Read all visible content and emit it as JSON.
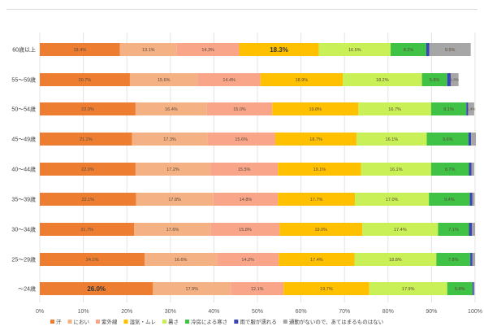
{
  "chart_data": {
    "type": "bar",
    "orientation": "horizontal",
    "stacked": true,
    "percent_axis": true,
    "categories": [
      "60歳以上",
      "55～59歳",
      "50～54歳",
      "45～49歳",
      "40～44歳",
      "35～39歳",
      "30～34歳",
      "25～29歳",
      "～24歳"
    ],
    "series": [
      {
        "name": "汗",
        "color": "#ed7d31",
        "values": [
          18.4,
          20.7,
          22.0,
          21.2,
          22.0,
          22.1,
          21.7,
          24.1,
          26.0
        ],
        "labels": [
          "18.4%",
          "20.7%",
          "22.0%",
          "21.2%",
          "22.0%",
          "22.1%",
          "21.7%",
          "24.1%",
          "26.0%"
        ]
      },
      {
        "name": "におい",
        "color": "#f4b183",
        "values": [
          13.1,
          15.6,
          16.4,
          17.3,
          17.2,
          17.8,
          17.6,
          16.6,
          17.9
        ],
        "labels": [
          "13.1%",
          "15.6%",
          "16.4%",
          "17.3%",
          "17.2%",
          "17.8%",
          "17.6%",
          "16.6%",
          "17.9%"
        ]
      },
      {
        "name": "紫外線",
        "color": "#f8a58a",
        "values": [
          14.3,
          14.4,
          15.0,
          15.6,
          15.5,
          14.8,
          15.8,
          14.2,
          12.1
        ],
        "labels": [
          "14.3%",
          "14.4%",
          "15.0%",
          "15.6%",
          "15.5%",
          "14.8%",
          "15.8%",
          "14.2%",
          "12.1%"
        ]
      },
      {
        "name": "湿気・ムレ",
        "color": "#ffc000",
        "values": [
          18.3,
          18.9,
          19.8,
          18.7,
          19.1,
          17.7,
          19.0,
          17.4,
          19.7
        ],
        "labels": [
          "18.3%",
          "18.9%",
          "19.8%",
          "18.7%",
          "19.1%",
          "17.7%",
          "19.0%",
          "17.4%",
          "19.7%"
        ]
      },
      {
        "name": "暑さ",
        "color": "#c9f056",
        "values": [
          16.5,
          18.2,
          16.7,
          16.1,
          16.1,
          17.0,
          17.4,
          18.8,
          17.9
        ],
        "labels": [
          "16.5%",
          "18.2%",
          "16.7%",
          "16.1%",
          "16.1%",
          "17.0%",
          "17.4%",
          "18.8%",
          "17.9%"
        ]
      },
      {
        "name": "冷房による寒さ",
        "color": "#3fc245",
        "values": [
          8.2,
          5.8,
          8.1,
          9.6,
          8.7,
          9.4,
          7.1,
          7.8,
          5.8
        ],
        "labels": [
          "8.2%",
          "5.8%",
          "8.1%",
          "9.6%",
          "8.7%",
          "9.4%",
          "7.1%",
          "7.8%",
          "5.8%"
        ]
      },
      {
        "name": "雨で服が濡れる",
        "color": "#3a44b4",
        "values": [
          0.7,
          0.8,
          0.4,
          0.6,
          0.6,
          0.6,
          0.7,
          0.5,
          0.3
        ],
        "labels": [
          "0.7%",
          "0.8%",
          "0.4%",
          "0.6%",
          "0.6%",
          "0.6%",
          "0.7%",
          "0.5%",
          "0.3%"
        ]
      },
      {
        "name": "通勤がないので、あてはまるものはない",
        "color": "#a6a6a6",
        "values": [
          9.5,
          1.8,
          1.4,
          1.1,
          0.6,
          0.5,
          0.7,
          0.6,
          0.2
        ],
        "labels": [
          "9.5%",
          "1.8%",
          "1.4%",
          "1.1%",
          "0.6%",
          "0.5%",
          "0.7%",
          "0.6%",
          "0.2%"
        ]
      }
    ],
    "emphasized": [
      {
        "series": 3,
        "category": 0
      },
      {
        "series": 0,
        "category": 8
      }
    ],
    "xlim": [
      0,
      100
    ],
    "xticks": [
      "0%",
      "10%",
      "20%",
      "30%",
      "40%",
      "50%",
      "60%",
      "70%",
      "80%",
      "90%",
      "100%"
    ],
    "grid": true,
    "legend_position": "bottom"
  }
}
